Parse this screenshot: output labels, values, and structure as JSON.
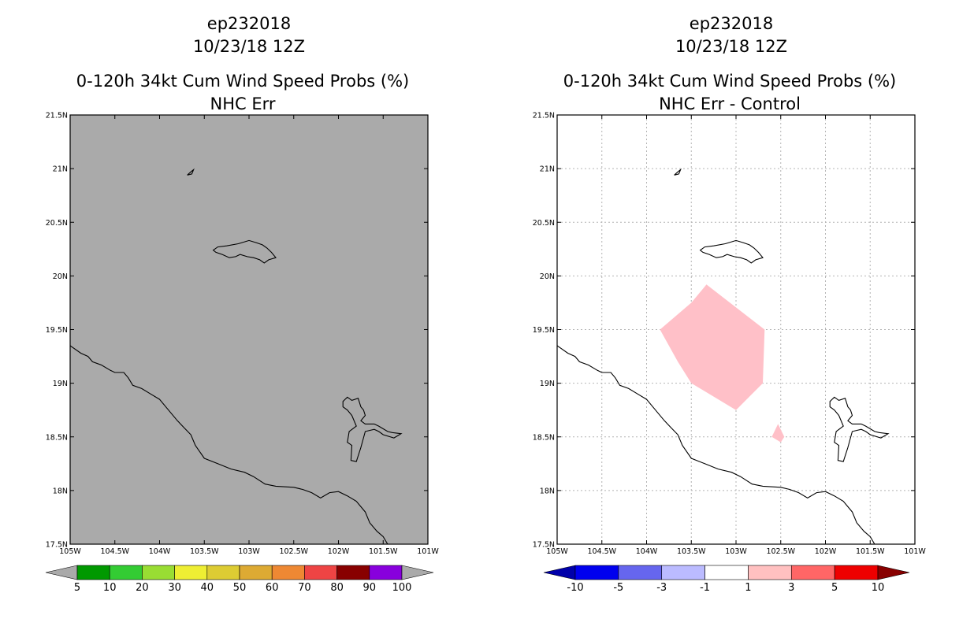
{
  "panels": [
    {
      "storm_id": "ep232018",
      "datetime": "10/23/18 12Z",
      "title": "0-120h 34kt Cum Wind Speed Probs (%)",
      "subtitle": "NHC Err",
      "background_color": "#aaaaaa",
      "show_grid": false,
      "lat_ticks": [
        "21.5N",
        "21N",
        "20.5N",
        "20N",
        "19.5N",
        "19N",
        "18.5N",
        "18N",
        "17.5N"
      ],
      "lon_ticks": [
        "105W",
        "104.5W",
        "104W",
        "103.5W",
        "103W",
        "102.5W",
        "102W",
        "101.5W",
        "101W"
      ],
      "colorbar": {
        "labels": [
          "5",
          "10",
          "20",
          "30",
          "40",
          "50",
          "60",
          "70",
          "80",
          "90",
          "100"
        ],
        "colors": [
          "#aaaaaa",
          "#009900",
          "#33cc33",
          "#99dd33",
          "#eeee33",
          "#ddcc33",
          "#ddaa33",
          "#ee8833",
          "#ee4444",
          "#880000",
          "#8800dd",
          "#aaaaaa"
        ]
      },
      "shaded_regions": []
    },
    {
      "storm_id": "ep232018",
      "datetime": "10/23/18 12Z",
      "title": "0-120h 34kt Cum Wind Speed Probs (%)",
      "subtitle": "NHC Err - Control",
      "background_color": "#ffffff",
      "show_grid": true,
      "lat_ticks": [
        "21.5N",
        "21N",
        "20.5N",
        "20N",
        "19.5N",
        "19N",
        "18.5N",
        "18N",
        "17.5N"
      ],
      "lon_ticks": [
        "105W",
        "104.5W",
        "104W",
        "103.5W",
        "103W",
        "102.5W",
        "102W",
        "101.5W",
        "101W"
      ],
      "colorbar": {
        "labels": [
          "-10",
          "-5",
          "-3",
          "-1",
          "1",
          "3",
          "5",
          "10"
        ],
        "colors": [
          "#0000aa",
          "#0000ee",
          "#6666ee",
          "#bbbbff",
          "#ffffff",
          "#ffc0c0",
          "#ff6666",
          "#ee0000",
          "#880000"
        ]
      },
      "shaded_regions": [
        {
          "name": "positive-diff-main",
          "value_bin": "1 to 3",
          "color": "#ffc0c8",
          "lonlat": [
            [
              -103.33,
              19.92
            ],
            [
              -102.68,
              19.5
            ],
            [
              -102.7,
              19.0
            ],
            [
              -103.0,
              18.75
            ],
            [
              -103.5,
              19.0
            ],
            [
              -103.65,
              19.2
            ],
            [
              -103.85,
              19.5
            ],
            [
              -103.5,
              19.75
            ]
          ]
        },
        {
          "name": "positive-diff-small",
          "value_bin": "1 to 3",
          "color": "#ffc0c8",
          "lonlat": [
            [
              -102.53,
              18.62
            ],
            [
              -102.46,
              18.5
            ],
            [
              -102.5,
              18.45
            ],
            [
              -102.6,
              18.5
            ]
          ]
        }
      ]
    }
  ],
  "coastline": {
    "mainland": [
      [
        -105,
        19.35
      ],
      [
        -104.88,
        19.28
      ],
      [
        -104.8,
        19.25
      ],
      [
        -104.75,
        19.2
      ],
      [
        -104.65,
        19.17
      ],
      [
        -104.55,
        19.12
      ],
      [
        -104.5,
        19.1
      ],
      [
        -104.4,
        19.1
      ],
      [
        -104.35,
        19.05
      ],
      [
        -104.3,
        18.98
      ],
      [
        -104.2,
        18.95
      ],
      [
        -104.1,
        18.9
      ],
      [
        -104.0,
        18.85
      ],
      [
        -103.9,
        18.75
      ],
      [
        -103.8,
        18.65
      ],
      [
        -103.72,
        18.58
      ],
      [
        -103.65,
        18.52
      ],
      [
        -103.6,
        18.42
      ],
      [
        -103.5,
        18.3
      ],
      [
        -103.35,
        18.25
      ],
      [
        -103.2,
        18.2
      ],
      [
        -103.05,
        18.17
      ],
      [
        -102.95,
        18.13
      ],
      [
        -102.82,
        18.06
      ],
      [
        -102.7,
        18.04
      ],
      [
        -102.5,
        18.03
      ],
      [
        -102.4,
        18.01
      ],
      [
        -102.3,
        17.98
      ],
      [
        -102.2,
        17.93
      ],
      [
        -102.1,
        17.98
      ],
      [
        -102.0,
        17.99
      ],
      [
        -101.9,
        17.95
      ],
      [
        -101.8,
        17.9
      ],
      [
        -101.7,
        17.8
      ],
      [
        -101.65,
        17.7
      ],
      [
        -101.57,
        17.62
      ],
      [
        -101.5,
        17.57
      ],
      [
        -101.45,
        17.5
      ]
    ],
    "island_large": [
      [
        -103.4,
        20.24
      ],
      [
        -103.35,
        20.27
      ],
      [
        -103.25,
        20.28
      ],
      [
        -103.12,
        20.3
      ],
      [
        -103.0,
        20.33
      ],
      [
        -102.92,
        20.31
      ],
      [
        -102.85,
        20.29
      ],
      [
        -102.8,
        20.26
      ],
      [
        -102.75,
        20.22
      ],
      [
        -102.7,
        20.17
      ],
      [
        -102.78,
        20.15
      ],
      [
        -102.83,
        20.12
      ],
      [
        -102.88,
        20.15
      ],
      [
        -102.95,
        20.17
      ],
      [
        -103.02,
        20.18
      ],
      [
        -103.1,
        20.2
      ],
      [
        -103.15,
        20.18
      ],
      [
        -103.22,
        20.17
      ],
      [
        -103.3,
        20.2
      ],
      [
        -103.37,
        20.22
      ],
      [
        -103.4,
        20.24
      ]
    ],
    "island_small": [
      [
        -103.69,
        20.94
      ],
      [
        -103.65,
        20.97
      ],
      [
        -103.62,
        20.99
      ],
      [
        -103.64,
        20.95
      ],
      [
        -103.69,
        20.94
      ]
    ],
    "lake": [
      [
        -101.95,
        18.83
      ],
      [
        -101.9,
        18.87
      ],
      [
        -101.85,
        18.84
      ],
      [
        -101.78,
        18.86
      ],
      [
        -101.75,
        18.78
      ],
      [
        -101.72,
        18.75
      ],
      [
        -101.7,
        18.7
      ],
      [
        -101.75,
        18.65
      ],
      [
        -101.7,
        18.62
      ],
      [
        -101.6,
        18.62
      ],
      [
        -101.55,
        18.6
      ],
      [
        -101.45,
        18.55
      ],
      [
        -101.4,
        18.54
      ],
      [
        -101.3,
        18.53
      ],
      [
        -101.38,
        18.49
      ],
      [
        -101.5,
        18.52
      ],
      [
        -101.55,
        18.55
      ],
      [
        -101.6,
        18.57
      ],
      [
        -101.7,
        18.55
      ],
      [
        -101.75,
        18.4
      ],
      [
        -101.8,
        18.27
      ],
      [
        -101.86,
        18.28
      ],
      [
        -101.85,
        18.42
      ],
      [
        -101.9,
        18.45
      ],
      [
        -101.88,
        18.55
      ],
      [
        -101.8,
        18.6
      ],
      [
        -101.85,
        18.7
      ],
      [
        -101.9,
        18.75
      ],
      [
        -101.95,
        18.78
      ],
      [
        -101.95,
        18.83
      ]
    ]
  }
}
